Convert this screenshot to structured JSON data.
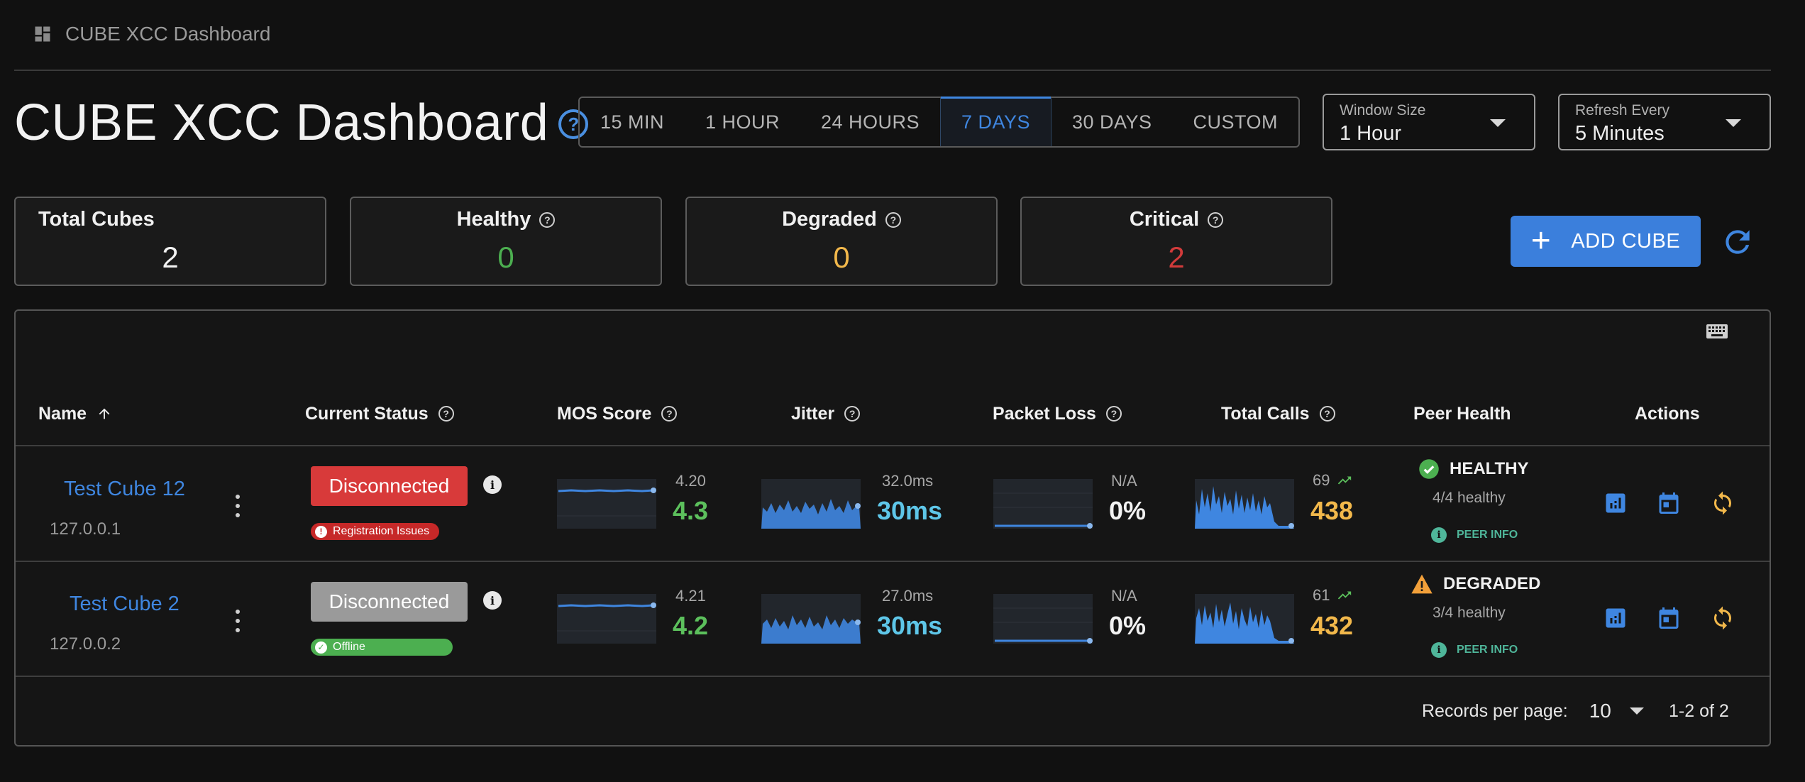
{
  "breadcrumb": {
    "icon": "dashboard-icon",
    "label": "CUBE XCC Dashboard"
  },
  "page": {
    "title": "CUBE XCC Dashboard"
  },
  "time_range": {
    "options": [
      "15 MIN",
      "1 HOUR",
      "24 HOURS",
      "7 DAYS",
      "30 DAYS",
      "CUSTOM"
    ],
    "selected": "7 DAYS"
  },
  "window_size": {
    "label": "Window Size",
    "value": "1 Hour"
  },
  "refresh_every": {
    "label": "Refresh Every",
    "value": "5 Minutes"
  },
  "stats": {
    "total": {
      "label": "Total Cubes",
      "value": "2"
    },
    "healthy": {
      "label": "Healthy",
      "value": "0",
      "color": "#4caf50"
    },
    "degraded": {
      "label": "Degraded",
      "value": "0",
      "color": "#f2b84b"
    },
    "critical": {
      "label": "Critical",
      "value": "2",
      "color": "#d23b3b"
    }
  },
  "add_button": {
    "label": "ADD CUBE"
  },
  "table": {
    "columns": {
      "name": "Name",
      "status": "Current Status",
      "mos": "MOS Score",
      "jitter": "Jitter",
      "packet_loss": "Packet Loss",
      "total_calls": "Total Calls",
      "peer_health": "Peer Health",
      "actions": "Actions"
    },
    "rows": [
      {
        "name": "Test Cube 12",
        "ip": "127.0.0.1",
        "status": "Disconnected",
        "status_color": "#d83a3a",
        "chip": "Registration Issues",
        "chip_color": "#c62828",
        "mos_prev": "4.20",
        "mos": "4.3",
        "jitter_prev": "32.0ms",
        "jitter": "30ms",
        "pl_prev": "N/A",
        "pl": "0%",
        "calls_prev": "69",
        "calls": "438",
        "peer_status": "HEALTHY",
        "peer_icon": "check-circle-icon",
        "peer_sub": "4/4 healthy",
        "peer_link": "PEER INFO"
      },
      {
        "name": "Test Cube 2",
        "ip": "127.0.0.2",
        "status": "Disconnected",
        "status_color": "#9a9a9a",
        "chip": "Offline",
        "chip_color": "#4caf50",
        "mos_prev": "4.21",
        "mos": "4.2",
        "jitter_prev": "27.0ms",
        "jitter": "30ms",
        "pl_prev": "N/A",
        "pl": "0%",
        "calls_prev": "61",
        "calls": "432",
        "peer_status": "DEGRADED",
        "peer_icon": "warning-icon",
        "peer_sub": "3/4 healthy",
        "peer_link": "PEER INFO"
      }
    ]
  },
  "pagination": {
    "rpp_label": "Records per page:",
    "rpp_value": "10",
    "range": "1-2 of 2"
  }
}
